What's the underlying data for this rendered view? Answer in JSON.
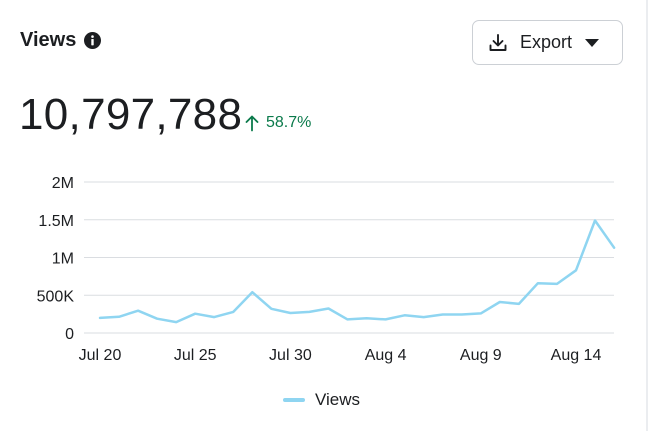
{
  "header": {
    "title": "Views",
    "info_icon": "info-icon"
  },
  "export": {
    "label": "Export",
    "icon": "download-icon",
    "caret": "caret-down-icon"
  },
  "summary": {
    "total": "10,797,788",
    "change": "58.7%",
    "change_icon": "arrow-up-icon",
    "change_color": "#0b7a4b"
  },
  "colors": {
    "line": "#8fd5f1",
    "grid": "#dadde1"
  },
  "chart_data": {
    "type": "line",
    "xlabel": "",
    "ylabel": "",
    "ylim": [
      0,
      2000000
    ],
    "y_ticks": [
      {
        "value": 0,
        "label": "0"
      },
      {
        "value": 500000,
        "label": "500K"
      },
      {
        "value": 1000000,
        "label": "1M"
      },
      {
        "value": 1500000,
        "label": "1.5M"
      },
      {
        "value": 2000000,
        "label": "2M"
      }
    ],
    "x_ticks": [
      {
        "date": "Jul 20",
        "label": "Jul 20"
      },
      {
        "date": "Jul 25",
        "label": "Jul 25"
      },
      {
        "date": "Jul 30",
        "label": "Jul 30"
      },
      {
        "date": "Aug 4",
        "label": "Aug 4"
      },
      {
        "date": "Aug 9",
        "label": "Aug 9"
      },
      {
        "date": "Aug 14",
        "label": "Aug 14"
      }
    ],
    "grid": true,
    "legend_position": "bottom",
    "series": [
      {
        "name": "Views",
        "color": "#8fd5f1",
        "x": [
          "Jul 20",
          "Jul 21",
          "Jul 22",
          "Jul 23",
          "Jul 24",
          "Jul 25",
          "Jul 26",
          "Jul 27",
          "Jul 28",
          "Jul 29",
          "Jul 30",
          "Jul 31",
          "Aug 1",
          "Aug 2",
          "Aug 3",
          "Aug 4",
          "Aug 5",
          "Aug 6",
          "Aug 7",
          "Aug 8",
          "Aug 9",
          "Aug 10",
          "Aug 11",
          "Aug 12",
          "Aug 13",
          "Aug 14",
          "Aug 15",
          "Aug 16"
        ],
        "values": [
          200000,
          215000,
          295000,
          190000,
          145000,
          255000,
          210000,
          280000,
          540000,
          320000,
          265000,
          280000,
          325000,
          180000,
          195000,
          180000,
          235000,
          210000,
          245000,
          245000,
          260000,
          410000,
          385000,
          660000,
          650000,
          830000,
          1490000,
          1130000
        ]
      }
    ]
  }
}
